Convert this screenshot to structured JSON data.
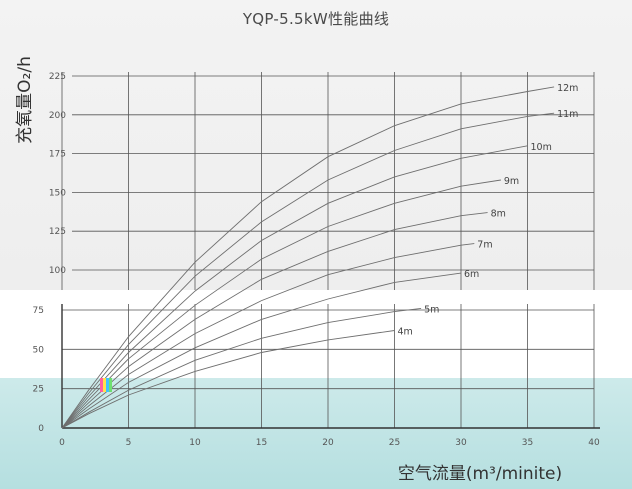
{
  "chart_data": {
    "type": "line",
    "title": "YQP-5.5kW性能曲线",
    "xlabel": "空气流量(m³/minite)",
    "ylabel": "充氧量O₂/h",
    "xlim": [
      0,
      40
    ],
    "ylim": [
      0,
      225
    ],
    "x_ticks": [
      "0",
      "5",
      "10",
      "15",
      "20",
      "25",
      "30",
      "35",
      "40"
    ],
    "y_ticks": [
      "0",
      "25",
      "50",
      "75",
      "100",
      "125",
      "150",
      "175",
      "200",
      "225"
    ],
    "grid": true,
    "series": [
      {
        "name": "12m",
        "x": [
          0,
          2,
          5,
          10,
          15,
          20,
          25,
          30,
          35,
          37
        ],
        "y": [
          0,
          24,
          58,
          105,
          144,
          173,
          193,
          207,
          215,
          218
        ]
      },
      {
        "name": "11m",
        "x": [
          0,
          2,
          5,
          10,
          15,
          20,
          25,
          30,
          35,
          37
        ],
        "y": [
          0,
          22,
          53,
          96,
          131,
          158,
          177,
          191,
          199,
          201
        ]
      },
      {
        "name": "10m",
        "x": [
          0,
          2,
          5,
          10,
          15,
          20,
          25,
          30,
          35
        ],
        "y": [
          0,
          20,
          48,
          87,
          119,
          143,
          160,
          172,
          180
        ]
      },
      {
        "name": "9m",
        "x": [
          0,
          2,
          5,
          10,
          15,
          20,
          25,
          30,
          33
        ],
        "y": [
          0,
          18,
          44,
          78,
          107,
          128,
          143,
          154,
          158
        ]
      },
      {
        "name": "8m",
        "x": [
          0,
          2,
          5,
          10,
          15,
          20,
          25,
          30,
          32
        ],
        "y": [
          0,
          16,
          39,
          69,
          94,
          112,
          126,
          135,
          137
        ]
      },
      {
        "name": "7m",
        "x": [
          0,
          2,
          5,
          10,
          15,
          20,
          25,
          30,
          31
        ],
        "y": [
          0,
          14,
          34,
          60,
          81,
          97,
          108,
          116,
          117
        ]
      },
      {
        "name": "6m",
        "x": [
          0,
          2,
          5,
          10,
          15,
          20,
          25,
          30
        ],
        "y": [
          0,
          12,
          29,
          51,
          69,
          82,
          92,
          98
        ]
      },
      {
        "name": "5m",
        "x": [
          0,
          2,
          5,
          10,
          15,
          20,
          25,
          27
        ],
        "y": [
          0,
          10,
          24,
          43,
          57,
          67,
          74,
          76
        ]
      },
      {
        "name": "4m",
        "x": [
          0,
          2,
          5,
          10,
          15,
          20,
          25
        ],
        "y": [
          0,
          9,
          21,
          36,
          48,
          56,
          62
        ]
      }
    ]
  }
}
